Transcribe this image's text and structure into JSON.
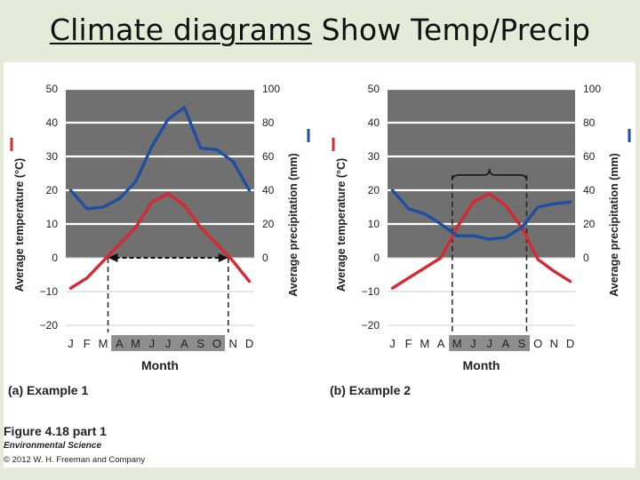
{
  "slide": {
    "title_underlined": "Climate diagrams",
    "title_rest": " Show Temp/Precip"
  },
  "figure": {
    "caption": "Figure 4.18 part 1",
    "book": "Environmental Science",
    "copyright": "© 2012 W. H. Freeman and Company"
  },
  "colors": {
    "temperature": "#d42a33",
    "precipitation": "#1f4fa3",
    "dry_region": "#707070",
    "wet_region": "#ffffff",
    "gridline": "#ffffff",
    "month_highlight": "#8e8e8e"
  },
  "chart_data": [
    {
      "type": "line",
      "panel_label": "(a) Example 1",
      "xlabel": "Month",
      "ylabel_left": "Average temperature (°C)",
      "ylabel_right": "Average precipitation (mm)",
      "ylim_left": [
        -20,
        50
      ],
      "ylim_right": [
        0,
        100
      ],
      "yticks_left": [
        "50",
        "40",
        "30",
        "20",
        "10",
        "0",
        "−10",
        "−20"
      ],
      "yticks_right": [
        "100",
        "80",
        "60",
        "40",
        "20",
        "0"
      ],
      "categories": [
        "J",
        "F",
        "M",
        "A",
        "M",
        "J",
        "J",
        "A",
        "S",
        "O",
        "N",
        "D"
      ],
      "highlight_months": [
        3,
        4,
        5,
        6,
        7,
        8,
        9
      ],
      "growing_season_arrow": {
        "from": 2.3,
        "to": 9.7
      },
      "series": [
        {
          "axis": "left",
          "color": "#d42a33",
          "values": [
            -9,
            -6,
            -1,
            4,
            9,
            16.5,
            19,
            15.5,
            9,
            4,
            -1,
            -7
          ]
        },
        {
          "axis": "right",
          "color": "#1f4fa3",
          "values": [
            40,
            29,
            30,
            35,
            45,
            66,
            82,
            89,
            65,
            64,
            57,
            40
          ]
        }
      ]
    },
    {
      "type": "line",
      "panel_label": "(b) Example 2",
      "xlabel": "Month",
      "ylabel_left": "Average temperature (°C)",
      "ylabel_right": "Average precipitation (mm)",
      "ylim_left": [
        -20,
        50
      ],
      "ylim_right": [
        0,
        100
      ],
      "yticks_left": [
        "50",
        "40",
        "30",
        "20",
        "10",
        "0",
        "−10",
        "−20"
      ],
      "yticks_right": [
        "100",
        "80",
        "60",
        "40",
        "20",
        "0"
      ],
      "categories": [
        "J",
        "F",
        "M",
        "A",
        "M",
        "J",
        "J",
        "A",
        "S",
        "O",
        "N",
        "D"
      ],
      "highlight_months": [
        4,
        5,
        6,
        7,
        8
      ],
      "dry_season_bracket": {
        "from": 4,
        "to": 8
      },
      "series": [
        {
          "axis": "left",
          "color": "#d42a33",
          "values": [
            -9,
            -6,
            -3,
            0,
            9,
            16.5,
            19,
            15.5,
            9,
            -0.5,
            -4,
            -7
          ]
        },
        {
          "axis": "right",
          "color": "#1f4fa3",
          "values": [
            40,
            29,
            26,
            20,
            13,
            13,
            11,
            12,
            18,
            30,
            32,
            33
          ]
        }
      ]
    }
  ]
}
